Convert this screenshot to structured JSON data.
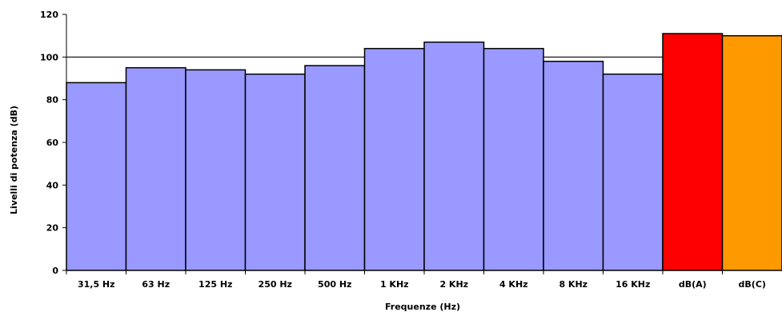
{
  "chart_data": {
    "type": "bar",
    "title": "",
    "xlabel": "Frequenze (Hz)",
    "ylabel": "Livelli di potenza (dB)",
    "ylim": [
      0,
      120
    ],
    "yticks": [
      "0",
      "20",
      "40",
      "60",
      "80",
      "100",
      "120"
    ],
    "grid": false,
    "reference_line": 100,
    "categories": [
      "31,5 Hz",
      "63 Hz",
      "125 Hz",
      "250 Hz",
      "500 Hz",
      "1 KHz",
      "2 KHz",
      "4 KHz",
      "8 KHz",
      "16 KHz",
      "dB(A)",
      "dB(C)"
    ],
    "values": [
      88,
      95,
      94,
      92,
      96,
      104,
      107,
      104,
      98,
      92,
      111,
      110
    ],
    "colors": [
      "#9999ff",
      "#9999ff",
      "#9999ff",
      "#9999ff",
      "#9999ff",
      "#9999ff",
      "#9999ff",
      "#9999ff",
      "#9999ff",
      "#9999ff",
      "#ff0000",
      "#ff9900"
    ]
  }
}
